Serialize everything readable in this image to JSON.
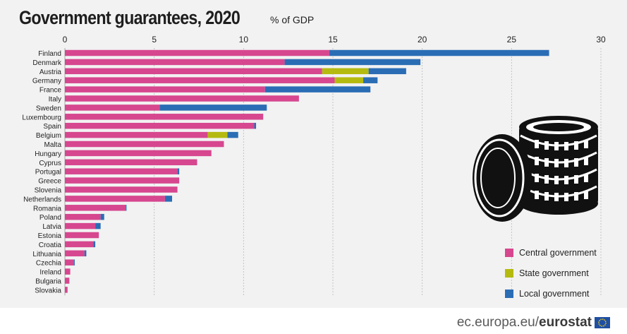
{
  "title": "Government guarantees, 2020",
  "subtitle": "% of GDP",
  "colors": {
    "central": "#d6478f",
    "state": "#b5ba0f",
    "local": "#2a6db5",
    "grid": "#b8b8b8",
    "text": "#222222"
  },
  "legend": [
    {
      "key": "central",
      "label": "Central government"
    },
    {
      "key": "state",
      "label": "State government"
    },
    {
      "key": "local",
      "label": "Local government"
    }
  ],
  "footer": {
    "url": "ec.europa.eu/",
    "brand": "eurostat"
  },
  "icons": {
    "coins": "coin-stack-icon",
    "flag": "eu-flag-icon"
  },
  "chart_data": {
    "type": "bar",
    "orientation": "horizontal",
    "stacked": true,
    "title": "Government guarantees, 2020",
    "unit": "% of GDP",
    "xlim": [
      0,
      30
    ],
    "xticks": [
      0,
      5,
      10,
      15,
      20,
      25,
      30
    ],
    "grid": true,
    "legend_position": "bottom-right",
    "categories": [
      "Finland",
      "Denmark",
      "Austria",
      "Germany",
      "France",
      "Italy",
      "Sweden",
      "Luxembourg",
      "Spain",
      "Belgium",
      "Malta",
      "Hungary",
      "Cyprus",
      "Portugal",
      "Greece",
      "Slovenia",
      "Netherlands",
      "Romania",
      "Poland",
      "Latvia",
      "Estonia",
      "Croatia",
      "Lithuania",
      "Czechia",
      "Ireland",
      "Bulgaria",
      "Slovakia"
    ],
    "series": [
      {
        "name": "Central government",
        "key": "central",
        "values": [
          14.8,
          12.3,
          14.4,
          15.1,
          11.2,
          13.1,
          5.3,
          11.1,
          10.6,
          8.0,
          8.9,
          8.2,
          7.4,
          6.3,
          6.4,
          6.3,
          5.6,
          3.4,
          2.0,
          1.7,
          1.9,
          1.6,
          1.1,
          0.5,
          0.3,
          0.25,
          0.15
        ]
      },
      {
        "name": "State government",
        "key": "state",
        "values": [
          0,
          0,
          2.6,
          1.6,
          0,
          0,
          0,
          0,
          0,
          1.1,
          0,
          0,
          0,
          0,
          0,
          0,
          0,
          0,
          0,
          0,
          0,
          0,
          0,
          0,
          0,
          0,
          0
        ]
      },
      {
        "name": "Local government",
        "key": "local",
        "values": [
          12.3,
          7.6,
          2.1,
          0.8,
          5.9,
          0,
          6.0,
          0,
          0.1,
          0.6,
          0,
          0,
          0,
          0.1,
          0,
          0,
          0.4,
          0.05,
          0.2,
          0.3,
          0,
          0.1,
          0.1,
          0.05,
          0,
          0,
          0
        ]
      }
    ]
  }
}
